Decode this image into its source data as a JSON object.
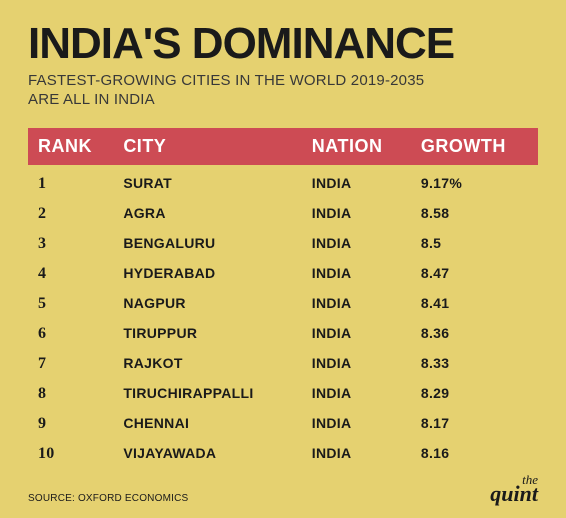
{
  "colors": {
    "background": "#e5d170",
    "title": "#1a1a1a",
    "subtitle": "#383838",
    "header_bg": "#cd4b54",
    "header_text": "#ffffff",
    "row_text": "#1a1a1a",
    "source": "#1a1a1a",
    "brand": "#1a1a1a"
  },
  "typography": {
    "title_size": 44,
    "subtitle_size": 15,
    "header_size": 18,
    "row_size": 14,
    "rank_size": 16,
    "source_size": 10,
    "brand_the_size": 13,
    "brand_quint_size": 22
  },
  "title": "INDIA'S DOMINANCE",
  "subtitle_line1": "FASTEST-GROWING CITIES IN THE WORLD 2019-2035",
  "subtitle_line2": "ARE ALL IN INDIA",
  "columns": {
    "rank": "RANK",
    "city": "CITY",
    "nation": "NATION",
    "growth": "GROWTH"
  },
  "rows": [
    {
      "rank": "1",
      "city": "SURAT",
      "nation": "INDIA",
      "growth": "9.17%"
    },
    {
      "rank": "2",
      "city": "AGRA",
      "nation": "INDIA",
      "growth": "8.58"
    },
    {
      "rank": "3",
      "city": "BENGALURU",
      "nation": "INDIA",
      "growth": "8.5"
    },
    {
      "rank": "4",
      "city": "HYDERABAD",
      "nation": "INDIA",
      "growth": "8.47"
    },
    {
      "rank": "5",
      "city": "NAGPUR",
      "nation": "INDIA",
      "growth": "8.41"
    },
    {
      "rank": "6",
      "city": "TIRUPPUR",
      "nation": "INDIA",
      "growth": "8.36"
    },
    {
      "rank": "7",
      "city": "RAJKOT",
      "nation": "INDIA",
      "growth": "8.33"
    },
    {
      "rank": "8",
      "city": "TIRUCHIRAPPALLI",
      "nation": "INDIA",
      "growth": "8.29"
    },
    {
      "rank": "9",
      "city": "CHENNAI",
      "nation": "INDIA",
      "growth": "8.17"
    },
    {
      "rank": "10",
      "city": "VIJAYAWADA",
      "nation": "INDIA",
      "growth": "8.16"
    }
  ],
  "source": "SOURCE: OXFORD ECONOMICS",
  "brand": {
    "the": "the",
    "quint": "quint"
  }
}
